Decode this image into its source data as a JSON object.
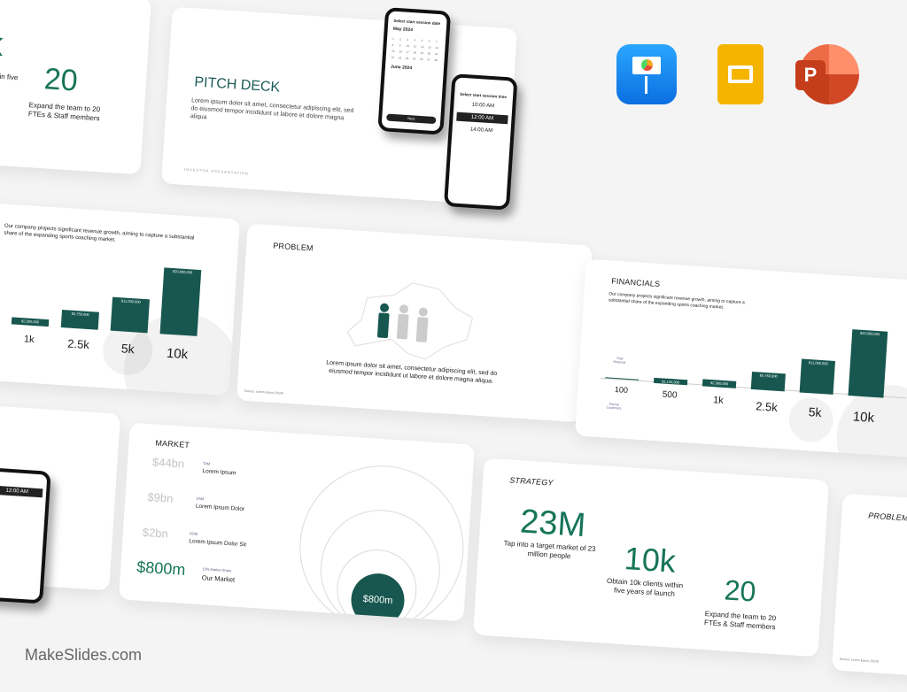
{
  "brand": "MakeSlides.com",
  "apps": [
    {
      "icon": "keynote-icon",
      "color": "#1a8cf0"
    },
    {
      "icon": "google-slides-icon",
      "color": "#f5b400"
    },
    {
      "icon": "powerpoint-icon",
      "color": "#d24726"
    }
  ],
  "colors": {
    "accent": "#167558",
    "bar": "#17574f"
  },
  "strategy": {
    "title": "STRATEGY",
    "stats": [
      {
        "value": "23M",
        "caption": "Tap into a target market of 23 million people"
      },
      {
        "value": "10k",
        "caption": "Obtain 10k clients within five years of launch"
      },
      {
        "value": "20",
        "caption": "Expand the team to 20 FTEs & Staff members"
      }
    ]
  },
  "pitch": {
    "title": "PITCH DECK",
    "body": "Lorem ipsum dolor sit amet, consectetur adipiscing elit, sed do eiusmod tempor incididunt ut labore et dolore magna aliqua",
    "footer": "INVESTOR PRESENTATION",
    "phone1": {
      "title": "Select start session date",
      "month1": "May 2024",
      "month2": "June 2024",
      "button": "Next"
    },
    "phone2": {
      "title": "Select start session time",
      "times": [
        "10:00 AM",
        "12:00 AM",
        "14:00 AM"
      ]
    }
  },
  "financials": {
    "title": "FINANCIALS",
    "body": "Our company projects significant revenue growth, aiming to capture a substantial share of the expanding sports coaching market.",
    "revenue_label": "Total Revenue",
    "customers_label": "Paying Customers",
    "bars": [
      {
        "label": "",
        "customers": "100",
        "value": 0
      },
      {
        "label": "$1,150,000",
        "customers": "500",
        "value": 1150000
      },
      {
        "label": "$2,300,000",
        "customers": "1k",
        "value": 2300000
      },
      {
        "label": "$5,750,000",
        "customers": "2.5k",
        "value": 5750000
      },
      {
        "label": "$11,000,000",
        "customers": "5k",
        "value": 11000000
      },
      {
        "label": "$20,000,000",
        "customers": "10k",
        "value": 20000000
      }
    ]
  },
  "problem": {
    "title": "PROBLEM",
    "body": "Lorem ipsum dolor sit amet, consectetur adipiscing elit, sed do eiusmod tempor incididunt ut labore et dolore magna aliqua.",
    "source": "Source: Lorem Ipsum (2024)"
  },
  "market": {
    "title": "MARKET",
    "rows": [
      {
        "value": "$44bn",
        "tag": "TAM",
        "label": "Lorem Ipsum"
      },
      {
        "value": "$9bn",
        "tag": "SAM",
        "label": "Lorem Ipsum Dolor"
      },
      {
        "value": "$2bn",
        "tag": "SOM",
        "label": "Lorem Ipsum Dolor Sit"
      },
      {
        "value": "$800m",
        "tag": "10% Market Share",
        "label": "Our Market"
      }
    ],
    "circle": "$800m"
  }
}
